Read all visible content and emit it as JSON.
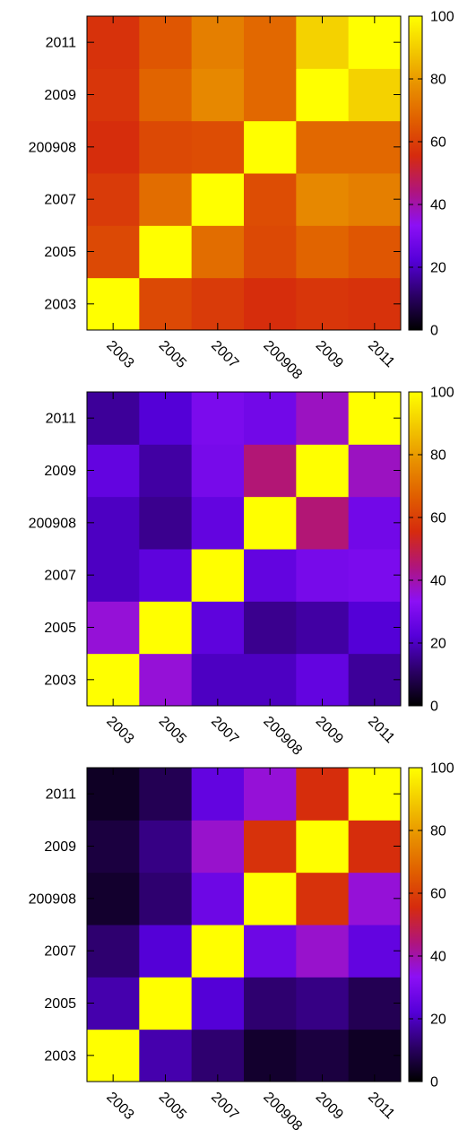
{
  "colorscale": {
    "name": "gnuplot-hot-purple",
    "stops": [
      "#000000",
      "#2b0066",
      "#5500d9",
      "#8c10f5",
      "#b0157a",
      "#d62b0d",
      "#e05e00",
      "#e89000",
      "#f2c800",
      "#ffff00"
    ],
    "min": 0,
    "max": 100,
    "ticks": [
      "0",
      "20",
      "40",
      "60",
      "80",
      "100"
    ]
  },
  "chart_data": [
    {
      "type": "heatmap",
      "x_categories": [
        "2003",
        "2005",
        "2007",
        "200908",
        "2009",
        "2011"
      ],
      "y_categories": [
        "2003",
        "2005",
        "2007",
        "200908",
        "2009",
        "2011"
      ],
      "z": [
        [
          100,
          62,
          59,
          56,
          58,
          57
        ],
        [
          62,
          100,
          70,
          62,
          68,
          65
        ],
        [
          59,
          70,
          100,
          63,
          76,
          74
        ],
        [
          56,
          62,
          63,
          100,
          69,
          69
        ],
        [
          58,
          68,
          76,
          69,
          100,
          91
        ],
        [
          57,
          65,
          74,
          69,
          91,
          100
        ]
      ],
      "zlim": [
        0,
        100
      ],
      "colorbar_ticks": [
        0,
        20,
        40,
        60,
        80,
        100
      ],
      "title": "",
      "xlabel": "",
      "ylabel": ""
    },
    {
      "type": "heatmap",
      "x_categories": [
        "2003",
        "2005",
        "2007",
        "200908",
        "2009",
        "2011"
      ],
      "y_categories": [
        "2003",
        "2005",
        "2007",
        "200908",
        "2009",
        "2011"
      ],
      "z": [
        [
          100,
          36,
          20,
          20,
          25,
          16
        ],
        [
          36,
          100,
          24,
          15,
          17,
          22
        ],
        [
          20,
          24,
          100,
          25,
          29,
          30
        ],
        [
          20,
          15,
          25,
          100,
          45,
          28
        ],
        [
          25,
          17,
          29,
          45,
          100,
          38
        ],
        [
          16,
          22,
          30,
          28,
          38,
          100
        ]
      ],
      "zlim": [
        0,
        100
      ],
      "colorbar_ticks": [
        0,
        20,
        40,
        60,
        80,
        100
      ],
      "title": "",
      "xlabel": "",
      "ylabel": ""
    },
    {
      "type": "heatmap",
      "x_categories": [
        "2003",
        "2005",
        "2007",
        "200908",
        "2009",
        "2011"
      ],
      "y_categories": [
        "2003",
        "2005",
        "2007",
        "200908",
        "2009",
        "2011"
      ],
      "z": [
        [
          100,
          18,
          12,
          5,
          7,
          4
        ],
        [
          18,
          100,
          22,
          12,
          14,
          9
        ],
        [
          12,
          22,
          100,
          27,
          37,
          25
        ],
        [
          5,
          12,
          27,
          100,
          57,
          36
        ],
        [
          7,
          14,
          37,
          57,
          100,
          56
        ],
        [
          4,
          9,
          25,
          36,
          56,
          100
        ]
      ],
      "zlim": [
        0,
        100
      ],
      "colorbar_ticks": [
        0,
        20,
        40,
        60,
        80,
        100
      ],
      "title": "",
      "xlabel": "",
      "ylabel": ""
    }
  ]
}
